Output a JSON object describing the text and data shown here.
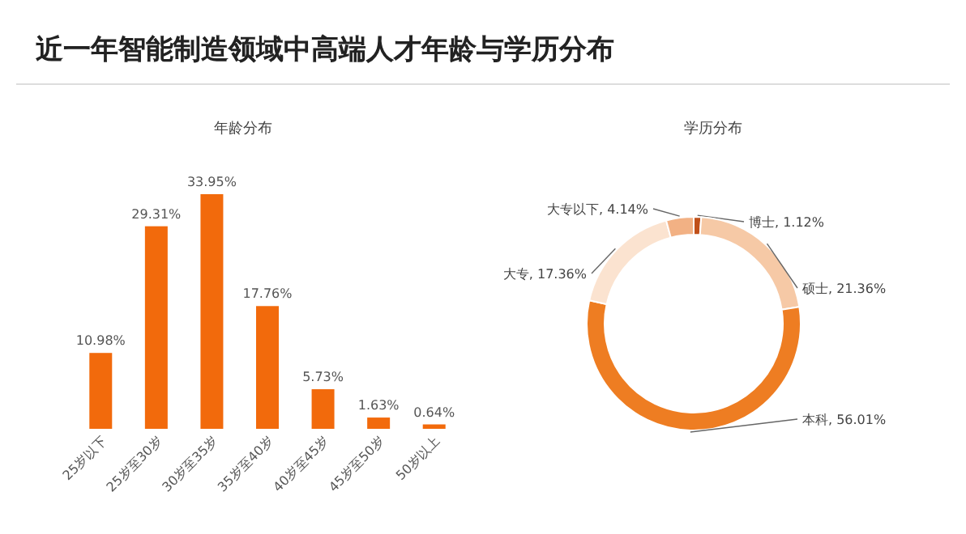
{
  "chart_data": [
    {
      "type": "bar",
      "title": "年龄分布",
      "annotations": [
        "近一年智能制造领域中高端人才年龄与学历分布"
      ],
      "categories": [
        "25岁以下",
        "25岁至30岁",
        "30岁至35岁",
        "35岁至40岁",
        "40岁至45岁",
        "45岁至50岁",
        "50岁以上"
      ],
      "values": [
        10.98,
        29.31,
        33.95,
        17.76,
        5.73,
        1.63,
        0.64
      ],
      "value_labels": [
        "10.98%",
        "29.31%",
        "33.95%",
        "17.76%",
        "5.73%",
        "1.63%",
        "0.64%"
      ],
      "color": "#f26a0c"
    },
    {
      "type": "donut",
      "title": "学历分布",
      "categories": [
        "博士",
        "硕士",
        "本科",
        "大专",
        "大专以下"
      ],
      "values": [
        1.12,
        21.36,
        56.01,
        17.36,
        4.14
      ],
      "value_labels": [
        "1.12%",
        "21.36%",
        "56.01%",
        "17.36%",
        "4.14%"
      ],
      "colors": [
        "#c0501a",
        "#f6c9a6",
        "#ee7d22",
        "#fbe3d0",
        "#f2b184"
      ]
    }
  ]
}
